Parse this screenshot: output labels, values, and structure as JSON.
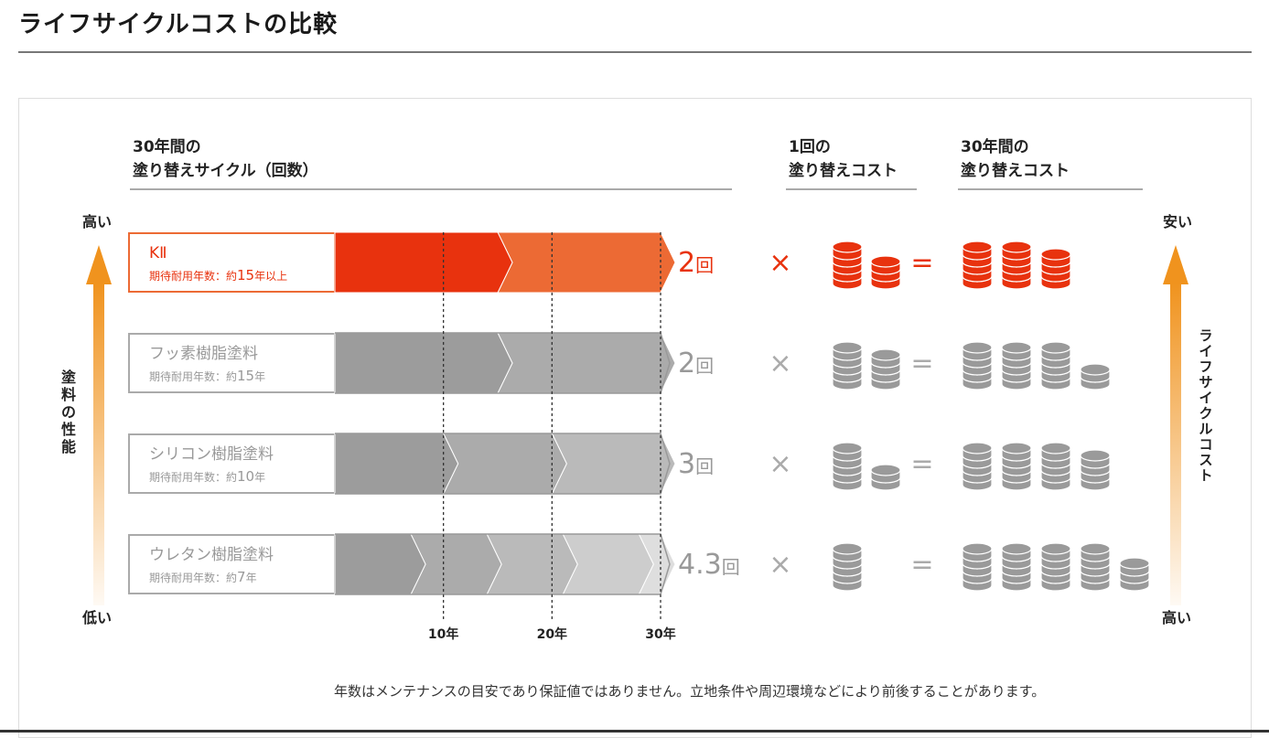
{
  "page": {
    "title": "ライフサイクルコストの比較"
  },
  "headers": {
    "cycle_line1": "30年間の",
    "cycle_line2": "塗り替えサイクル（回数）",
    "cost_line1": "1回の",
    "cost_line2": "塗り替えコスト",
    "total_line1": "30年間の",
    "total_line2": "塗り替えコスト"
  },
  "left_axis": {
    "top": "高い",
    "bottom": "低い",
    "label": "塗料の性能"
  },
  "right_axis": {
    "top": "安い",
    "bottom": "高い",
    "label": "ライフサイクルコスト"
  },
  "symbols": {
    "times": "×",
    "equals": "="
  },
  "colors": {
    "accent": "#e8320e",
    "accent_light": "#ec6a34",
    "gray": "#9a9a9a",
    "arrow": "#f0931e"
  },
  "chart_data": {
    "type": "bar",
    "x_ticks": [
      {
        "years": 10,
        "label": "10年"
      },
      {
        "years": 20,
        "label": "20年"
      },
      {
        "years": 30,
        "label": "30年"
      }
    ],
    "xlim": [
      0,
      30
    ],
    "rows": [
      {
        "name": "KⅡ",
        "sub_prefix": "期待耐用年数：約",
        "years_text": "15",
        "sub_suffix": "年以上",
        "durability_years": 15,
        "cycles": 2,
        "count_num": "2",
        "count_unit": "回",
        "cost_stacks": [
          5,
          3
        ],
        "total_stacks": [
          5,
          5,
          4
        ],
        "highlight": true
      },
      {
        "name": "フッ素樹脂塗料",
        "sub_prefix": "期待耐用年数：約",
        "years_text": "15",
        "sub_suffix": "年",
        "durability_years": 15,
        "cycles": 2,
        "count_num": "2",
        "count_unit": "回",
        "cost_stacks": [
          5,
          4
        ],
        "total_stacks": [
          5,
          5,
          5,
          2
        ],
        "highlight": false
      },
      {
        "name": "シリコン樹脂塗料",
        "sub_prefix": "期待耐用年数：約",
        "years_text": "10",
        "sub_suffix": "年",
        "durability_years": 10,
        "cycles": 3,
        "count_num": "3",
        "count_unit": "回",
        "cost_stacks": [
          5,
          2
        ],
        "total_stacks": [
          5,
          5,
          5,
          4
        ],
        "highlight": false
      },
      {
        "name": "ウレタン樹脂塗料",
        "sub_prefix": "期待耐用年数：約",
        "years_text": "7",
        "sub_suffix": "年",
        "durability_years": 7,
        "cycles": 4.3,
        "count_num": "4.3",
        "count_unit": "回",
        "cost_stacks": [
          5
        ],
        "total_stacks": [
          5,
          5,
          5,
          5,
          3
        ],
        "highlight": false
      }
    ]
  },
  "footnote": "年数はメンテナンスの目安であり保証値ではありません。立地条件や周辺環境などにより前後することがあります。"
}
